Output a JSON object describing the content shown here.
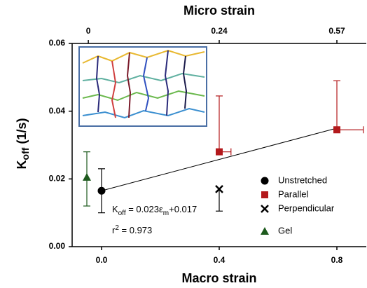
{
  "chart_data": {
    "type": "scatter",
    "x_label": "Macro strain",
    "y_label": {
      "main": "K",
      "sub": "off",
      "rest": " (1/s)"
    },
    "top_axis": {
      "label": "Micro strain",
      "ticks": [
        0,
        0.24,
        0.57
      ],
      "at_macro": [
        -0.045,
        0.4,
        0.8
      ]
    },
    "xlim": [
      -0.1,
      0.9
    ],
    "ylim": [
      0,
      0.06
    ],
    "xticks": [
      {
        "value": 0,
        "label": "0.0"
      },
      {
        "value": 0.4,
        "label": "0.4"
      },
      {
        "value": 0.8,
        "label": "0.8"
      }
    ],
    "yticks": [
      {
        "value": 0,
        "label": "0.00"
      },
      {
        "value": 0.02,
        "label": "0.02"
      },
      {
        "value": 0.04,
        "label": "0.04"
      },
      {
        "value": 0.06,
        "label": "0.06"
      }
    ],
    "series": [
      {
        "name": "Unstretched",
        "color": "#000000",
        "marker": "circle",
        "x": [
          0
        ],
        "values": [
          0.0165
        ],
        "yerr_low": [
          0.0065
        ],
        "yerr_high": [
          0.0065
        ],
        "xerr_high": [
          null
        ]
      },
      {
        "name": "Parallel",
        "color": "#b3191c",
        "marker": "square",
        "x": [
          0.4,
          0.8
        ],
        "values": [
          0.028,
          0.0345
        ],
        "yerr_low": [
          null,
          null
        ],
        "yerr_high": [
          0.0165,
          0.0145
        ],
        "xerr_high": [
          0.04,
          0.09
        ]
      },
      {
        "name": "Perpendicular",
        "color": "#000000",
        "marker": "x",
        "x": [
          0.4
        ],
        "values": [
          0.017
        ],
        "yerr_low": [
          0.0065
        ],
        "yerr_high": [
          null
        ],
        "xerr_high": [
          null
        ]
      },
      {
        "name": "Gel",
        "color": "#1d5a1d",
        "marker": "triangle",
        "x": [
          -0.05
        ],
        "values": [
          0.0205
        ],
        "yerr_low": [
          0.0085
        ],
        "yerr_high": [
          0.0075
        ],
        "xerr_high": [
          null
        ]
      }
    ],
    "fit": {
      "x": [
        0,
        0.8
      ],
      "values": [
        0.0165,
        0.035
      ]
    },
    "annotations": {
      "equation": {
        "k": "K",
        "sub": "off",
        "mid": " = 0.023ε",
        "sub2": "m",
        "end": "+0.017"
      },
      "r2": {
        "r": "r",
        "sup": "2",
        "end": " = 0.973"
      }
    }
  }
}
